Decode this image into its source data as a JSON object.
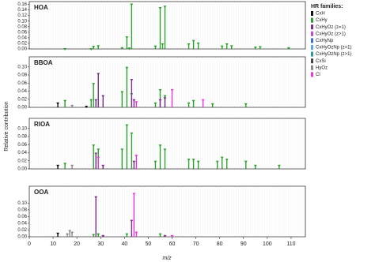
{
  "chart_data": [
    {
      "type": "bar",
      "title": "HOA",
      "ylim": [
        0,
        0.17
      ],
      "yticks": [
        {
          "value": 0,
          "label": "0.00"
        },
        {
          "value": 0.02,
          "label": "0.02"
        },
        {
          "value": 0.04,
          "label": "0.04"
        },
        {
          "value": 0.06,
          "label": "0.06"
        },
        {
          "value": 0.08,
          "label": "0.08"
        },
        {
          "value": 0.1,
          "label": "0.10"
        },
        {
          "value": 0.12,
          "label": "0.12"
        },
        {
          "value": 0.14,
          "label": "0.14"
        },
        {
          "value": 0.16,
          "label": "0.16"
        }
      ],
      "series": [
        {
          "color": "#2ca02c",
          "x": [
            15,
            26,
            27,
            29,
            39,
            41,
            42,
            43,
            53,
            55,
            56,
            57,
            67,
            69,
            71,
            81,
            83,
            85,
            95,
            97,
            109
          ],
          "values": [
            0.003,
            0.003,
            0.011,
            0.013,
            0.006,
            0.045,
            0.005,
            0.163,
            0.012,
            0.15,
            0.02,
            0.155,
            0.02,
            0.032,
            0.023,
            0.012,
            0.02,
            0.013,
            0.008,
            0.01,
            0.006
          ]
        }
      ]
    },
    {
      "type": "bar",
      "title": "BBOA",
      "ylim": [
        0,
        0.125
      ],
      "yticks": [
        {
          "value": 0,
          "label": "0.00"
        },
        {
          "value": 0.02,
          "label": "0.02"
        },
        {
          "value": 0.04,
          "label": "0.04"
        },
        {
          "value": 0.06,
          "label": "0.06"
        },
        {
          "value": 0.08,
          "label": "0.08"
        },
        {
          "value": 0.1,
          "label": "0.10"
        }
      ],
      "series": [
        {
          "color": "#111111",
          "x": [
            12,
            24
          ],
          "values": [
            0.012,
            0.004
          ]
        },
        {
          "color": "#2ca02c",
          "x": [
            15,
            26,
            27,
            39,
            41,
            43,
            53,
            55,
            57,
            67,
            69,
            77,
            91
          ],
          "values": [
            0.018,
            0.02,
            0.06,
            0.04,
            0.1,
            0.035,
            0.012,
            0.045,
            0.03,
            0.012,
            0.018,
            0.01,
            0.01
          ]
        },
        {
          "color": "#7b2d8e",
          "x": [
            28,
            29,
            31,
            43,
            44,
            55,
            57
          ],
          "values": [
            0.02,
            0.085,
            0.03,
            0.07,
            0.02,
            0.02,
            0.025
          ]
        },
        {
          "color": "#ee33dd",
          "x": [
            45,
            60,
            73
          ],
          "values": [
            0.015,
            0.045,
            0.02
          ]
        },
        {
          "color": "#888888",
          "x": [
            18
          ],
          "values": [
            0.006
          ]
        }
      ]
    },
    {
      "type": "bar",
      "title": "RIOA",
      "ylim": [
        0,
        0.125
      ],
      "yticks": [
        {
          "value": 0,
          "label": "0.00"
        },
        {
          "value": 0.02,
          "label": "0.02"
        },
        {
          "value": 0.04,
          "label": "0.04"
        },
        {
          "value": 0.06,
          "label": "0.06"
        },
        {
          "value": 0.08,
          "label": "0.08"
        },
        {
          "value": 0.1,
          "label": "0.10"
        }
      ],
      "series": [
        {
          "color": "#111111",
          "x": [
            12
          ],
          "values": [
            0.01
          ]
        },
        {
          "color": "#2ca02c",
          "x": [
            15,
            27,
            29,
            39,
            41,
            43,
            53,
            55,
            57,
            67,
            69,
            71,
            79,
            81,
            83,
            91,
            95,
            105
          ],
          "values": [
            0.015,
            0.06,
            0.05,
            0.05,
            0.11,
            0.09,
            0.02,
            0.06,
            0.05,
            0.025,
            0.025,
            0.02,
            0.02,
            0.03,
            0.025,
            0.02,
            0.01,
            0.01
          ]
        },
        {
          "color": "#7b2d8e",
          "x": [
            28,
            31,
            44
          ],
          "values": [
            0.04,
            0.01,
            0.02
          ]
        },
        {
          "color": "#ee33dd",
          "x": [
            29,
            45
          ],
          "values": [
            0.03,
            0.035
          ]
        },
        {
          "color": "#888888",
          "x": [
            18
          ],
          "values": [
            0.01
          ]
        }
      ]
    },
    {
      "type": "bar",
      "title": "OOA",
      "ylim": [
        0,
        0.15
      ],
      "yticks": [
        {
          "value": 0,
          "label": "0.00"
        },
        {
          "value": 0.02,
          "label": "0.02"
        },
        {
          "value": 0.04,
          "label": "0.04"
        },
        {
          "value": 0.06,
          "label": "0.06"
        },
        {
          "value": 0.08,
          "label": "0.08"
        },
        {
          "value": 0.1,
          "label": "0.10"
        }
      ],
      "series": [
        {
          "color": "#111111",
          "x": [
            12
          ],
          "values": [
            0.012
          ]
        },
        {
          "color": "#2ca02c",
          "x": [
            27,
            29,
            41,
            55
          ],
          "values": [
            0.008,
            0.01,
            0.01,
            0.01
          ]
        },
        {
          "color": "#7b2d8e",
          "x": [
            28,
            31,
            43,
            57
          ],
          "values": [
            0.12,
            0.005,
            0.05,
            0.005
          ]
        },
        {
          "color": "#ee33dd",
          "x": [
            44,
            45,
            60
          ],
          "values": [
            0.13,
            0.015,
            0.005
          ]
        },
        {
          "color": "#888888",
          "x": [
            16,
            17,
            18
          ],
          "values": [
            0.01,
            0.02,
            0.015
          ]
        }
      ]
    }
  ],
  "xlim": [
    0,
    116
  ],
  "xticks": [
    0,
    10,
    20,
    30,
    40,
    50,
    60,
    70,
    80,
    90,
    100,
    110
  ],
  "xlabel": "m/z",
  "ylabel": "Relative contribution",
  "legend": {
    "title": "HR families:",
    "items": [
      {
        "name": "CxH",
        "color": "#111111"
      },
      {
        "name": "CxHy",
        "color": "#2ca02c"
      },
      {
        "name": "CxHyOz (z=1)",
        "color": "#7b2d8e"
      },
      {
        "name": "CxHyOz (z>1)",
        "color": "#c050c8"
      },
      {
        "name": "CxHyNp",
        "color": "#3a6fd8"
      },
      {
        "name": "CxHyOzNp (z=1)",
        "color": "#5aa8e8"
      },
      {
        "name": "CxHyOzNp (z>1)",
        "color": "#2a9a9a"
      },
      {
        "name": "CxSi",
        "color": "#444444"
      },
      {
        "name": "HyOz",
        "color": "#888888"
      },
      {
        "name": "Cl",
        "color": "#ee33dd"
      }
    ]
  }
}
